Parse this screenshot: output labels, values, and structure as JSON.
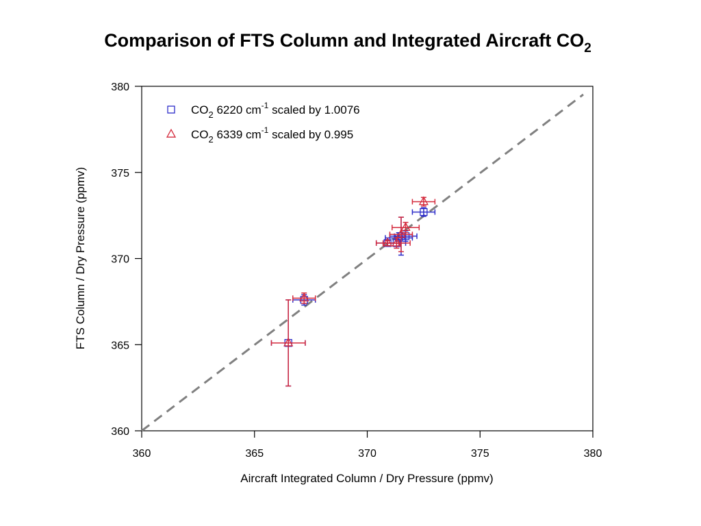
{
  "chart_data": {
    "type": "scatter",
    "title": {
      "main": "Comparison of FTS Column and Integrated Aircraft CO",
      "subscript": "2"
    },
    "xlabel": "Aircraft Integrated Column / Dry Pressure (ppmv)",
    "ylabel": "FTS Column / Dry Pressure (ppmv)",
    "xlim": [
      360,
      380
    ],
    "ylim": [
      360,
      380
    ],
    "x_ticks": [
      360,
      365,
      370,
      375,
      380
    ],
    "y_ticks": [
      360,
      365,
      370,
      375,
      380
    ],
    "grid": false,
    "legend_position": "top-left",
    "reference_line": {
      "type": "one-to-one",
      "style": "dashed",
      "color": "#808080"
    },
    "series": [
      {
        "legend": {
          "pre": "CO",
          "sub": "2",
          "mid": " 6220 cm",
          "sup": "-1",
          "post": " scaled by 1.0076"
        },
        "marker": "square",
        "color": "#2b2bc8",
        "points": [
          {
            "x": 366.5,
            "y": 365.1,
            "xerr": 0.75,
            "yerr": 2.5
          },
          {
            "x": 367.2,
            "y": 367.6,
            "xerr": 0.5,
            "yerr": 0.3
          },
          {
            "x": 370.9,
            "y": 370.9,
            "xerr": 0.5,
            "yerr": 0.15
          },
          {
            "x": 371.3,
            "y": 370.9,
            "xerr": 0.4,
            "yerr": 0.2
          },
          {
            "x": 371.4,
            "y": 371.2,
            "xerr": 0.6,
            "yerr": 0.3
          },
          {
            "x": 371.5,
            "y": 371.3,
            "xerr": 0.5,
            "yerr": 1.1
          },
          {
            "x": 371.7,
            "y": 371.3,
            "xerr": 0.5,
            "yerr": 0.3
          },
          {
            "x": 372.5,
            "y": 372.7,
            "xerr": 0.5,
            "yerr": 0.25
          }
        ]
      },
      {
        "legend": {
          "pre": "CO",
          "sub": "2",
          "mid": " 6339 cm",
          "sup": "-1",
          "post": " scaled by 0.995"
        },
        "marker": "triangle",
        "color": "#d42a3c",
        "points": [
          {
            "x": 366.5,
            "y": 365.1,
            "xerr": 0.75,
            "yerr": 2.5
          },
          {
            "x": 367.2,
            "y": 367.7,
            "xerr": 0.5,
            "yerr": 0.3
          },
          {
            "x": 370.9,
            "y": 370.9,
            "xerr": 0.5,
            "yerr": 0.15
          },
          {
            "x": 371.3,
            "y": 370.9,
            "xerr": 0.6,
            "yerr": 0.3
          },
          {
            "x": 371.5,
            "y": 371.4,
            "xerr": 0.5,
            "yerr": 1.0
          },
          {
            "x": 371.7,
            "y": 371.8,
            "xerr": 0.6,
            "yerr": 0.3
          },
          {
            "x": 372.5,
            "y": 373.3,
            "xerr": 0.5,
            "yerr": 0.25
          }
        ]
      }
    ]
  }
}
